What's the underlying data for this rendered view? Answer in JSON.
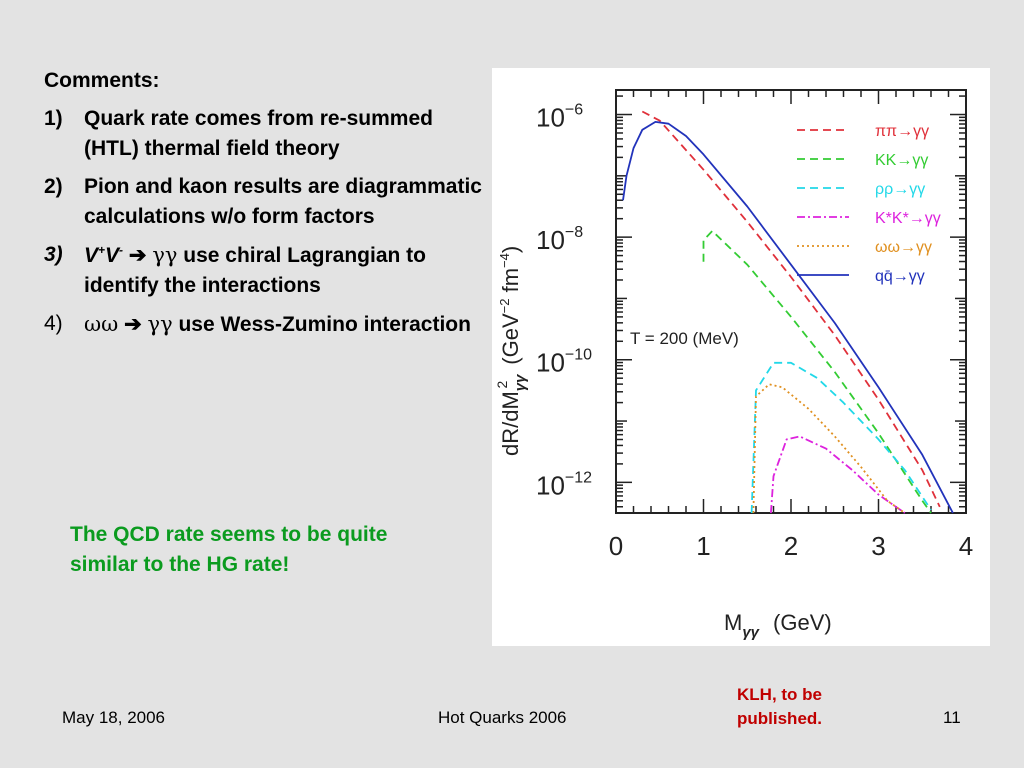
{
  "slide": {
    "comments_heading": "Comments:",
    "items": [
      {
        "num": "1)",
        "text": "Quark rate comes from re-summed (HTL) thermal field theory"
      },
      {
        "num": "2)",
        "text": "Pion and kaon results are diagrammatic calculations w/o form factors"
      },
      {
        "num": "3)",
        "vv_v1": "V",
        "vv_sup1": "+",
        "vv_v2": "V",
        "vv_sup2": "-",
        "arrow": " ➔ ",
        "gg": "γγ",
        "text": " use chiral Lagrangian to identify the interactions"
      },
      {
        "num": "4)",
        "ww": "ωω",
        "arrow": " ➔ ",
        "gg": "γγ",
        "text": " use Wess-Zumino interaction"
      }
    ],
    "green_note": "The QCD rate seems to be quite similar to the HG rate!",
    "citation": "KLH, to be published.",
    "footer": {
      "date": "May 18, 2006",
      "conference": "Hot Quarks 2006",
      "page": "11"
    },
    "colors": {
      "background": "#e3e3e3",
      "green_note": "#0b9b1f",
      "citation": "#c00000"
    }
  },
  "chart_data": {
    "type": "line",
    "xlabel": "M",
    "xlabel_sub": "γγ",
    "xlabel_unit": "(GeV)",
    "ylabel": "dR/dM",
    "ylabel_sub": "γγ",
    "ylabel_sup": "2",
    "ylabel_unit": "(GeV",
    "ylabel_unit_exp1": "−2",
    "ylabel_unit_mid": " fm",
    "ylabel_unit_exp2": "−4",
    "ylabel_unit_close": ")",
    "annotation": "T  =  200  (MeV)",
    "xlim": [
      0,
      4
    ],
    "ylim_log10": [
      -12.5,
      -5.6
    ],
    "x_ticks": [
      {
        "value": 0,
        "label": "0"
      },
      {
        "value": 1,
        "label": "1"
      },
      {
        "value": 2,
        "label": "2"
      },
      {
        "value": 3,
        "label": "3"
      },
      {
        "value": 4,
        "label": "4"
      }
    ],
    "y_ticks": [
      {
        "exp": -6,
        "base": "10",
        "sup": "−6"
      },
      {
        "exp": -8,
        "base": "10",
        "sup": "−8"
      },
      {
        "exp": -10,
        "base": "10",
        "sup": "−10"
      },
      {
        "exp": -12,
        "base": "10",
        "sup": "−12"
      }
    ],
    "series": [
      {
        "name": "ππ→γγ",
        "color": "#e0303a",
        "dash": "8,5",
        "x": [
          0.3,
          0.5,
          1.0,
          1.5,
          2.0,
          2.5,
          3.0,
          3.5,
          3.7
        ],
        "log10y": [
          -5.95,
          -6.1,
          -6.9,
          -7.75,
          -8.65,
          -9.6,
          -10.65,
          -11.8,
          -12.4
        ]
      },
      {
        "name": "KK→γγ",
        "color": "#33cc33",
        "dash": "8,5",
        "x": [
          1.0,
          1.0,
          1.1,
          1.5,
          2.0,
          2.5,
          3.0,
          3.5,
          3.6
        ],
        "log10y": [
          -8.4,
          -8.05,
          -7.9,
          -8.45,
          -9.3,
          -10.2,
          -11.2,
          -12.3,
          -12.5
        ]
      },
      {
        "name": "ρρ→γγ",
        "color": "#22d8e8",
        "dash": "8,5",
        "x": [
          1.55,
          1.6,
          1.8,
          2.0,
          2.3,
          2.6,
          3.0,
          3.3,
          3.6
        ],
        "log10y": [
          -12.5,
          -10.5,
          -10.05,
          -10.05,
          -10.3,
          -10.7,
          -11.3,
          -11.8,
          -12.45
        ]
      },
      {
        "name": "K*K*→γγ",
        "color": "#dd22dd",
        "dash": "8,3,2,3",
        "x": [
          1.77,
          1.8,
          1.95,
          2.1,
          2.4,
          2.7,
          3.0,
          3.3
        ],
        "log10y": [
          -12.5,
          -11.9,
          -11.3,
          -11.25,
          -11.45,
          -11.8,
          -12.2,
          -12.5
        ]
      },
      {
        "name": "ωω→γγ",
        "color": "#e09020",
        "dash": "2,3",
        "x": [
          1.57,
          1.6,
          1.75,
          1.9,
          2.2,
          2.5,
          2.8,
          3.1,
          3.3
        ],
        "log10y": [
          -12.5,
          -10.6,
          -10.4,
          -10.45,
          -10.8,
          -11.25,
          -11.75,
          -12.3,
          -12.5
        ]
      },
      {
        "name": "qq̄→γγ",
        "color": "#2233bb",
        "dash": "",
        "x": [
          0.08,
          0.12,
          0.2,
          0.3,
          0.45,
          0.6,
          0.8,
          1.0,
          1.5,
          2.0,
          2.5,
          3.0,
          3.5,
          3.85
        ],
        "log10y": [
          -7.4,
          -7.0,
          -6.55,
          -6.25,
          -6.12,
          -6.15,
          -6.35,
          -6.65,
          -7.5,
          -8.45,
          -9.4,
          -10.45,
          -11.55,
          -12.5
        ]
      }
    ],
    "legend_position": "top-right",
    "grid": false
  }
}
